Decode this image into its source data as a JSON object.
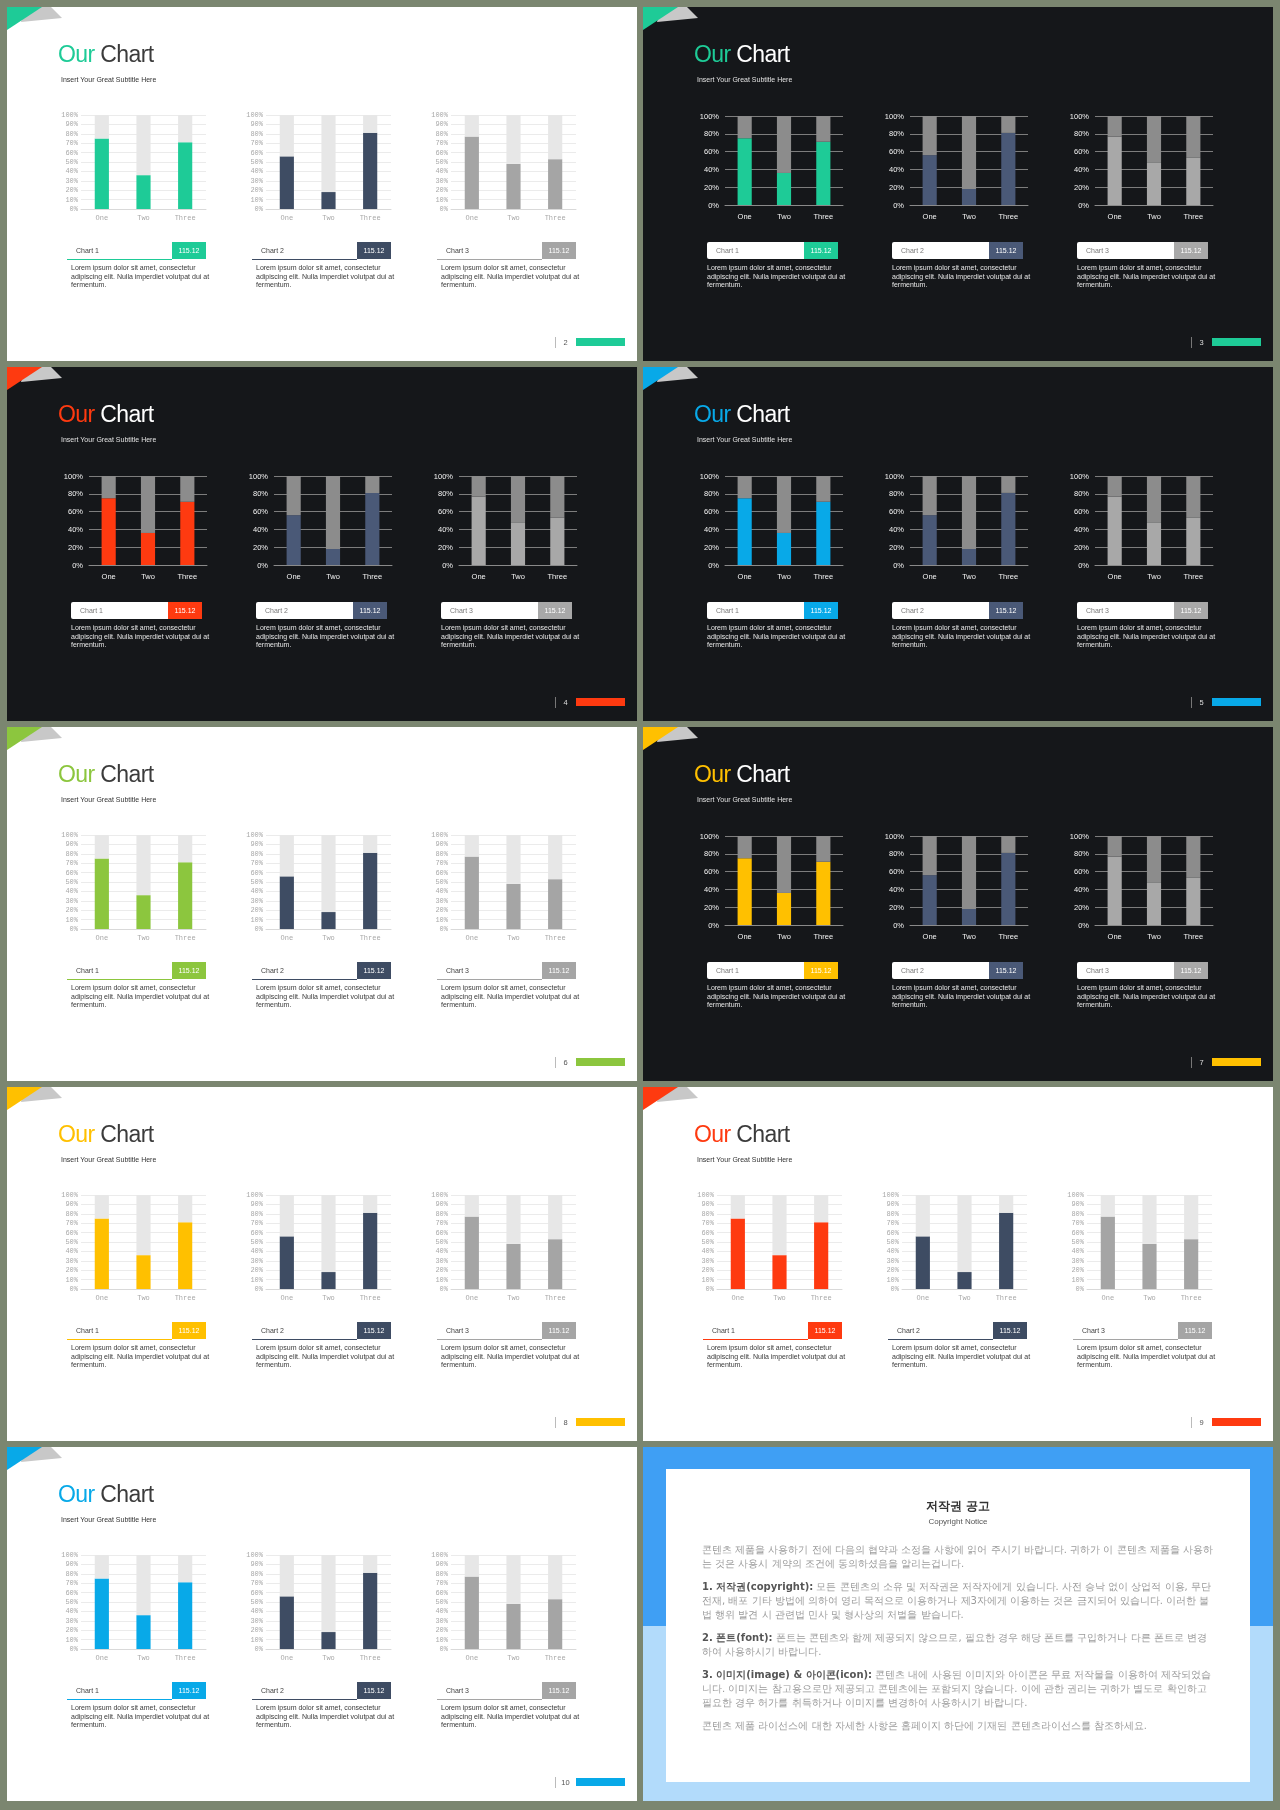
{
  "chart_data": [
    {
      "type": "bar",
      "stacked": true,
      "title": "Our Chart",
      "subtitle": "Insert Your Great Subtitle Here",
      "categories": [
        "One",
        "Two",
        "Three"
      ],
      "series": [
        {
          "color": "#1ecb97",
          "values": [
            75,
            36,
            71
          ]
        },
        {
          "color": "#e7e7e7",
          "values": [
            25,
            64,
            29
          ]
        }
      ],
      "ylim": [
        0,
        100
      ],
      "yticks": [
        {
          "value": 0,
          "label": "0%"
        },
        {
          "value": 10,
          "label": "10%"
        },
        {
          "value": 20,
          "label": "20%"
        },
        {
          "value": 30,
          "label": "30%"
        },
        {
          "value": 40,
          "label": "40%"
        },
        {
          "value": 50,
          "label": "50%"
        },
        {
          "value": 60,
          "label": "60%"
        },
        {
          "value": 70,
          "label": "70%"
        },
        {
          "value": 80,
          "label": "80%"
        },
        {
          "value": 90,
          "label": "90%"
        },
        {
          "value": 100,
          "label": "100%"
        }
      ],
      "grid": "y",
      "annotations": [
        "Chart 1",
        "115.12",
        "Lorem ipsum dolor sit amet, consectetur adipiscing elit. Nulla imperdiet volutpat dui at fermentum."
      ]
    },
    {
      "type": "bar",
      "stacked": true,
      "categories": [
        "One",
        "Two",
        "Three"
      ],
      "series": [
        {
          "color": "#3e4c63",
          "values": [
            56,
            18,
            81
          ]
        },
        {
          "color": "#e7e7e7",
          "values": [
            44,
            82,
            19
          ]
        }
      ],
      "ylim": [
        0,
        100
      ],
      "yticks": [
        {
          "value": 0,
          "label": "0%"
        },
        {
          "value": 10,
          "label": "10%"
        },
        {
          "value": 20,
          "label": "20%"
        },
        {
          "value": 30,
          "label": "30%"
        },
        {
          "value": 40,
          "label": "40%"
        },
        {
          "value": 50,
          "label": "50%"
        },
        {
          "value": 60,
          "label": "60%"
        },
        {
          "value": 70,
          "label": "70%"
        },
        {
          "value": 80,
          "label": "80%"
        },
        {
          "value": 90,
          "label": "90%"
        },
        {
          "value": 100,
          "label": "100%"
        }
      ],
      "grid": "y",
      "annotations": [
        "Chart 2",
        "115.12",
        "Lorem ipsum dolor sit amet, consectetur adipiscing elit. Nulla imperdiet volutpat dui at fermentum."
      ]
    },
    {
      "type": "bar",
      "stacked": true,
      "categories": [
        "One",
        "Two",
        "Three"
      ],
      "series": [
        {
          "color": "#a5a5a5",
          "values": [
            77,
            48,
            53
          ]
        },
        {
          "color": "#e7e7e7",
          "values": [
            23,
            52,
            47
          ]
        }
      ],
      "ylim": [
        0,
        100
      ],
      "yticks": [
        {
          "value": 0,
          "label": "0%"
        },
        {
          "value": 10,
          "label": "10%"
        },
        {
          "value": 20,
          "label": "20%"
        },
        {
          "value": 30,
          "label": "30%"
        },
        {
          "value": 40,
          "label": "40%"
        },
        {
          "value": 50,
          "label": "50%"
        },
        {
          "value": 60,
          "label": "60%"
        },
        {
          "value": 70,
          "label": "70%"
        },
        {
          "value": 80,
          "label": "80%"
        },
        {
          "value": 90,
          "label": "90%"
        },
        {
          "value": 100,
          "label": "100%"
        }
      ],
      "grid": "y",
      "annotations": [
        "Chart 3",
        "115.12",
        "Lorem ipsum dolor sit amet, consectetur adipiscing elit. Nulla imperdiet volutpat dui at fermentum.",
        "2"
      ]
    },
    {
      "type": "bar",
      "stacked": true,
      "title": "Our Chart",
      "subtitle": "Insert Your Great Subtitle Here",
      "categories": [
        "One",
        "Two",
        "Three"
      ],
      "series": [
        {
          "color": "#1ecb97",
          "values": [
            75,
            36,
            71
          ]
        },
        {
          "color": "#8c8c8c",
          "values": [
            25,
            64,
            29
          ]
        }
      ],
      "ylim": [
        0,
        100
      ],
      "yticks": [
        {
          "value": 0,
          "label": "0%"
        },
        {
          "value": 20,
          "label": "20%"
        },
        {
          "value": 40,
          "label": "40%"
        },
        {
          "value": 60,
          "label": "60%"
        },
        {
          "value": 80,
          "label": "80%"
        },
        {
          "value": 100,
          "label": "100%"
        }
      ],
      "grid": "y",
      "annotations": [
        "Chart 1",
        "115.12",
        "Lorem ipsum dolor sit amet, consectetur adipiscing elit. Nulla imperdiet volutpat dui at fermentum."
      ]
    },
    {
      "type": "bar",
      "stacked": true,
      "categories": [
        "One",
        "Two",
        "Three"
      ],
      "series": [
        {
          "color": "#4a5977",
          "values": [
            56,
            18,
            81
          ]
        },
        {
          "color": "#8c8c8c",
          "values": [
            44,
            82,
            19
          ]
        }
      ],
      "ylim": [
        0,
        100
      ],
      "yticks": [
        {
          "value": 0,
          "label": "0%"
        },
        {
          "value": 20,
          "label": "20%"
        },
        {
          "value": 40,
          "label": "40%"
        },
        {
          "value": 60,
          "label": "60%"
        },
        {
          "value": 80,
          "label": "80%"
        },
        {
          "value": 100,
          "label": "100%"
        }
      ],
      "grid": "y",
      "annotations": [
        "Chart 2",
        "115.12",
        "Lorem ipsum dolor sit amet, consectetur adipiscing elit. Nulla imperdiet volutpat dui at fermentum."
      ]
    },
    {
      "type": "bar",
      "stacked": true,
      "categories": [
        "One",
        "Two",
        "Three"
      ],
      "series": [
        {
          "color": "#a8a8a8",
          "values": [
            77,
            48,
            53
          ]
        },
        {
          "color": "#8c8c8c",
          "values": [
            23,
            52,
            47
          ]
        }
      ],
      "ylim": [
        0,
        100
      ],
      "yticks": [
        {
          "value": 0,
          "label": "0%"
        },
        {
          "value": 20,
          "label": "20%"
        },
        {
          "value": 40,
          "label": "40%"
        },
        {
          "value": 60,
          "label": "60%"
        },
        {
          "value": 80,
          "label": "80%"
        },
        {
          "value": 100,
          "label": "100%"
        }
      ],
      "grid": "y",
      "annotations": [
        "Chart 3",
        "115.12",
        "Lorem ipsum dolor sit amet, consectetur adipiscing elit. Nulla imperdiet volutpat dui at fermentum.",
        "3"
      ]
    },
    {
      "type": "bar",
      "stacked": true,
      "title": "Our Chart",
      "subtitle": "Insert Your Great Subtitle Here",
      "categories": [
        "One",
        "Two",
        "Three"
      ],
      "series": [
        {
          "color": "#fe3a10",
          "values": [
            75,
            36,
            71
          ]
        },
        {
          "color": "#8c8c8c",
          "values": [
            25,
            64,
            29
          ]
        }
      ],
      "ylim": [
        0,
        100
      ],
      "yticks": [
        {
          "value": 0,
          "label": "0%"
        },
        {
          "value": 20,
          "label": "20%"
        },
        {
          "value": 40,
          "label": "40%"
        },
        {
          "value": 60,
          "label": "60%"
        },
        {
          "value": 80,
          "label": "80%"
        },
        {
          "value": 100,
          "label": "100%"
        }
      ],
      "grid": "y",
      "annotations": [
        "Chart 1",
        "115.12",
        "Lorem ipsum dolor sit amet, consectetur adipiscing elit. Nulla imperdiet volutpat dui at fermentum."
      ]
    },
    {
      "type": "bar",
      "stacked": true,
      "categories": [
        "One",
        "Two",
        "Three"
      ],
      "series": [
        {
          "color": "#4a5977",
          "values": [
            56,
            18,
            81
          ]
        },
        {
          "color": "#8c8c8c",
          "values": [
            44,
            82,
            19
          ]
        }
      ],
      "ylim": [
        0,
        100
      ],
      "yticks": [
        {
          "value": 0,
          "label": "0%"
        },
        {
          "value": 20,
          "label": "20%"
        },
        {
          "value": 40,
          "label": "40%"
        },
        {
          "value": 60,
          "label": "60%"
        },
        {
          "value": 80,
          "label": "80%"
        },
        {
          "value": 100,
          "label": "100%"
        }
      ],
      "grid": "y",
      "annotations": [
        "Chart 2",
        "115.12",
        "Lorem ipsum dolor sit amet, consectetur adipiscing elit. Nulla imperdiet volutpat dui at fermentum."
      ]
    },
    {
      "type": "bar",
      "stacked": true,
      "categories": [
        "One",
        "Two",
        "Three"
      ],
      "series": [
        {
          "color": "#a8a8a8",
          "values": [
            77,
            48,
            53
          ]
        },
        {
          "color": "#8c8c8c",
          "values": [
            23,
            52,
            47
          ]
        }
      ],
      "ylim": [
        0,
        100
      ],
      "yticks": [
        {
          "value": 0,
          "label": "0%"
        },
        {
          "value": 20,
          "label": "20%"
        },
        {
          "value": 40,
          "label": "40%"
        },
        {
          "value": 60,
          "label": "60%"
        },
        {
          "value": 80,
          "label": "80%"
        },
        {
          "value": 100,
          "label": "100%"
        }
      ],
      "grid": "y",
      "annotations": [
        "Chart 3",
        "115.12",
        "Lorem ipsum dolor sit amet, consectetur adipiscing elit. Nulla imperdiet volutpat dui at fermentum.",
        "4"
      ]
    },
    {
      "type": "bar",
      "stacked": true,
      "title": "Our Chart",
      "subtitle": "Insert Your Great Subtitle Here",
      "categories": [
        "One",
        "Two",
        "Three"
      ],
      "series": [
        {
          "color": "#08a9e8",
          "values": [
            75,
            36,
            71
          ]
        },
        {
          "color": "#8c8c8c",
          "values": [
            25,
            64,
            29
          ]
        }
      ],
      "ylim": [
        0,
        100
      ],
      "yticks": [
        {
          "value": 0,
          "label": "0%"
        },
        {
          "value": 20,
          "label": "20%"
        },
        {
          "value": 40,
          "label": "40%"
        },
        {
          "value": 60,
          "label": "60%"
        },
        {
          "value": 80,
          "label": "80%"
        },
        {
          "value": 100,
          "label": "100%"
        }
      ],
      "grid": "y",
      "annotations": [
        "Chart 1",
        "115.12",
        "Lorem ipsum dolor sit amet, consectetur adipiscing elit. Nulla imperdiet volutpat dui at fermentum."
      ]
    },
    {
      "type": "bar",
      "stacked": true,
      "categories": [
        "One",
        "Two",
        "Three"
      ],
      "series": [
        {
          "color": "#4a5977",
          "values": [
            56,
            18,
            81
          ]
        },
        {
          "color": "#8c8c8c",
          "values": [
            44,
            82,
            19
          ]
        }
      ],
      "ylim": [
        0,
        100
      ],
      "yticks": [
        {
          "value": 0,
          "label": "0%"
        },
        {
          "value": 20,
          "label": "20%"
        },
        {
          "value": 40,
          "label": "40%"
        },
        {
          "value": 60,
          "label": "60%"
        },
        {
          "value": 80,
          "label": "80%"
        },
        {
          "value": 100,
          "label": "100%"
        }
      ],
      "grid": "y",
      "annotations": [
        "Chart 2",
        "115.12",
        "Lorem ipsum dolor sit amet, consectetur adipiscing elit. Nulla imperdiet volutpat dui at fermentum."
      ]
    },
    {
      "type": "bar",
      "stacked": true,
      "categories": [
        "One",
        "Two",
        "Three"
      ],
      "series": [
        {
          "color": "#a8a8a8",
          "values": [
            77,
            48,
            53
          ]
        },
        {
          "color": "#8c8c8c",
          "values": [
            23,
            52,
            47
          ]
        }
      ],
      "ylim": [
        0,
        100
      ],
      "yticks": [
        {
          "value": 0,
          "label": "0%"
        },
        {
          "value": 20,
          "label": "20%"
        },
        {
          "value": 40,
          "label": "40%"
        },
        {
          "value": 60,
          "label": "60%"
        },
        {
          "value": 80,
          "label": "80%"
        },
        {
          "value": 100,
          "label": "100%"
        }
      ],
      "grid": "y",
      "annotations": [
        "Chart 3",
        "115.12",
        "Lorem ipsum dolor sit amet, consectetur adipiscing elit. Nulla imperdiet volutpat dui at fermentum.",
        "5"
      ]
    },
    {
      "type": "bar",
      "stacked": true,
      "title": "Our Chart",
      "subtitle": "Insert Your Great Subtitle Here",
      "categories": [
        "One",
        "Two",
        "Three"
      ],
      "series": [
        {
          "color": "#8cc63e",
          "values": [
            75,
            36,
            71
          ]
        },
        {
          "color": "#e7e7e7",
          "values": [
            25,
            64,
            29
          ]
        }
      ],
      "ylim": [
        0,
        100
      ],
      "yticks": [
        {
          "value": 0,
          "label": "0%"
        },
        {
          "value": 10,
          "label": "10%"
        },
        {
          "value": 20,
          "label": "20%"
        },
        {
          "value": 30,
          "label": "30%"
        },
        {
          "value": 40,
          "label": "40%"
        },
        {
          "value": 50,
          "label": "50%"
        },
        {
          "value": 60,
          "label": "60%"
        },
        {
          "value": 70,
          "label": "70%"
        },
        {
          "value": 80,
          "label": "80%"
        },
        {
          "value": 90,
          "label": "90%"
        },
        {
          "value": 100,
          "label": "100%"
        }
      ],
      "grid": "y",
      "annotations": [
        "Chart 1",
        "115.12",
        "Lorem ipsum dolor sit amet, consectetur adipiscing elit. Nulla imperdiet volutpat dui at fermentum."
      ]
    },
    {
      "type": "bar",
      "stacked": true,
      "categories": [
        "One",
        "Two",
        "Three"
      ],
      "series": [
        {
          "color": "#3e4c63",
          "values": [
            56,
            18,
            81
          ]
        },
        {
          "color": "#e7e7e7",
          "values": [
            44,
            82,
            19
          ]
        }
      ],
      "ylim": [
        0,
        100
      ],
      "yticks": [
        {
          "value": 0,
          "label": "0%"
        },
        {
          "value": 10,
          "label": "10%"
        },
        {
          "value": 20,
          "label": "20%"
        },
        {
          "value": 30,
          "label": "30%"
        },
        {
          "value": 40,
          "label": "40%"
        },
        {
          "value": 50,
          "label": "50%"
        },
        {
          "value": 60,
          "label": "60%"
        },
        {
          "value": 70,
          "label": "70%"
        },
        {
          "value": 80,
          "label": "80%"
        },
        {
          "value": 90,
          "label": "90%"
        },
        {
          "value": 100,
          "label": "100%"
        }
      ],
      "grid": "y",
      "annotations": [
        "Chart 2",
        "115.12",
        "Lorem ipsum dolor sit amet, consectetur adipiscing elit. Nulla imperdiet volutpat dui at fermentum."
      ]
    },
    {
      "type": "bar",
      "stacked": true,
      "categories": [
        "One",
        "Two",
        "Three"
      ],
      "series": [
        {
          "color": "#a5a5a5",
          "values": [
            77,
            48,
            53
          ]
        },
        {
          "color": "#e7e7e7",
          "values": [
            23,
            52,
            47
          ]
        }
      ],
      "ylim": [
        0,
        100
      ],
      "yticks": [
        {
          "value": 0,
          "label": "0%"
        },
        {
          "value": 10,
          "label": "10%"
        },
        {
          "value": 20,
          "label": "20%"
        },
        {
          "value": 30,
          "label": "30%"
        },
        {
          "value": 40,
          "label": "40%"
        },
        {
          "value": 50,
          "label": "50%"
        },
        {
          "value": 60,
          "label": "60%"
        },
        {
          "value": 70,
          "label": "70%"
        },
        {
          "value": 80,
          "label": "80%"
        },
        {
          "value": 90,
          "label": "90%"
        },
        {
          "value": 100,
          "label": "100%"
        }
      ],
      "grid": "y",
      "annotations": [
        "Chart 3",
        "115.12",
        "Lorem ipsum dolor sit amet, consectetur adipiscing elit. Nulla imperdiet volutpat dui at fermentum.",
        "6"
      ]
    },
    {
      "type": "bar",
      "stacked": true,
      "title": "Our Chart",
      "subtitle": "Insert Your Great Subtitle Here",
      "categories": [
        "One",
        "Two",
        "Three"
      ],
      "series": [
        {
          "color": "#ffc000",
          "values": [
            75,
            36,
            71
          ]
        },
        {
          "color": "#8c8c8c",
          "values": [
            25,
            64,
            29
          ]
        }
      ],
      "ylim": [
        0,
        100
      ],
      "yticks": [
        {
          "value": 0,
          "label": "0%"
        },
        {
          "value": 20,
          "label": "20%"
        },
        {
          "value": 40,
          "label": "40%"
        },
        {
          "value": 60,
          "label": "60%"
        },
        {
          "value": 80,
          "label": "80%"
        },
        {
          "value": 100,
          "label": "100%"
        }
      ],
      "grid": "y",
      "annotations": [
        "Chart 1",
        "115.12",
        "Lorem ipsum dolor sit amet, consectetur adipiscing elit. Nulla imperdiet volutpat dui at fermentum."
      ]
    },
    {
      "type": "bar",
      "stacked": true,
      "categories": [
        "One",
        "Two",
        "Three"
      ],
      "series": [
        {
          "color": "#4a5977",
          "values": [
            56,
            18,
            81
          ]
        },
        {
          "color": "#8c8c8c",
          "values": [
            44,
            82,
            19
          ]
        }
      ],
      "ylim": [
        0,
        100
      ],
      "yticks": [
        {
          "value": 0,
          "label": "0%"
        },
        {
          "value": 20,
          "label": "20%"
        },
        {
          "value": 40,
          "label": "40%"
        },
        {
          "value": 60,
          "label": "60%"
        },
        {
          "value": 80,
          "label": "80%"
        },
        {
          "value": 100,
          "label": "100%"
        }
      ],
      "grid": "y",
      "annotations": [
        "Chart 2",
        "115.12",
        "Lorem ipsum dolor sit amet, consectetur adipiscing elit. Nulla imperdiet volutpat dui at fermentum."
      ]
    },
    {
      "type": "bar",
      "stacked": true,
      "categories": [
        "One",
        "Two",
        "Three"
      ],
      "series": [
        {
          "color": "#a8a8a8",
          "values": [
            77,
            48,
            53
          ]
        },
        {
          "color": "#8c8c8c",
          "values": [
            23,
            52,
            47
          ]
        }
      ],
      "ylim": [
        0,
        100
      ],
      "yticks": [
        {
          "value": 0,
          "label": "0%"
        },
        {
          "value": 20,
          "label": "20%"
        },
        {
          "value": 40,
          "label": "40%"
        },
        {
          "value": 60,
          "label": "60%"
        },
        {
          "value": 80,
          "label": "80%"
        },
        {
          "value": 100,
          "label": "100%"
        }
      ],
      "grid": "y",
      "annotations": [
        "Chart 3",
        "115.12",
        "Lorem ipsum dolor sit amet, consectetur adipiscing elit. Nulla imperdiet volutpat dui at fermentum.",
        "7"
      ]
    },
    {
      "type": "bar",
      "stacked": true,
      "title": "Our Chart",
      "subtitle": "Insert Your Great Subtitle Here",
      "categories": [
        "One",
        "Two",
        "Three"
      ],
      "series": [
        {
          "color": "#ffc000",
          "values": [
            75,
            36,
            71
          ]
        },
        {
          "color": "#e7e7e7",
          "values": [
            25,
            64,
            29
          ]
        }
      ],
      "ylim": [
        0,
        100
      ],
      "yticks": [
        {
          "value": 0,
          "label": "0%"
        },
        {
          "value": 10,
          "label": "10%"
        },
        {
          "value": 20,
          "label": "20%"
        },
        {
          "value": 30,
          "label": "30%"
        },
        {
          "value": 40,
          "label": "40%"
        },
        {
          "value": 50,
          "label": "50%"
        },
        {
          "value": 60,
          "label": "60%"
        },
        {
          "value": 70,
          "label": "70%"
        },
        {
          "value": 80,
          "label": "80%"
        },
        {
          "value": 90,
          "label": "90%"
        },
        {
          "value": 100,
          "label": "100%"
        }
      ],
      "grid": "y",
      "annotations": [
        "Chart 1",
        "115.12",
        "Lorem ipsum dolor sit amet, consectetur adipiscing elit. Nulla imperdiet volutpat dui at fermentum."
      ]
    },
    {
      "type": "bar",
      "stacked": true,
      "categories": [
        "One",
        "Two",
        "Three"
      ],
      "series": [
        {
          "color": "#3e4c63",
          "values": [
            56,
            18,
            81
          ]
        },
        {
          "color": "#e7e7e7",
          "values": [
            44,
            82,
            19
          ]
        }
      ],
      "ylim": [
        0,
        100
      ],
      "yticks": [
        {
          "value": 0,
          "label": "0%"
        },
        {
          "value": 10,
          "label": "10%"
        },
        {
          "value": 20,
          "label": "20%"
        },
        {
          "value": 30,
          "label": "30%"
        },
        {
          "value": 40,
          "label": "40%"
        },
        {
          "value": 50,
          "label": "50%"
        },
        {
          "value": 60,
          "label": "60%"
        },
        {
          "value": 70,
          "label": "70%"
        },
        {
          "value": 80,
          "label": "80%"
        },
        {
          "value": 90,
          "label": "90%"
        },
        {
          "value": 100,
          "label": "100%"
        }
      ],
      "grid": "y",
      "annotations": [
        "Chart 2",
        "115.12",
        "Lorem ipsum dolor sit amet, consectetur adipiscing elit. Nulla imperdiet volutpat dui at fermentum."
      ]
    },
    {
      "type": "bar",
      "stacked": true,
      "categories": [
        "One",
        "Two",
        "Three"
      ],
      "series": [
        {
          "color": "#a5a5a5",
          "values": [
            77,
            48,
            53
          ]
        },
        {
          "color": "#e7e7e7",
          "values": [
            23,
            52,
            47
          ]
        }
      ],
      "ylim": [
        0,
        100
      ],
      "yticks": [
        {
          "value": 0,
          "label": "0%"
        },
        {
          "value": 10,
          "label": "10%"
        },
        {
          "value": 20,
          "label": "20%"
        },
        {
          "value": 30,
          "label": "30%"
        },
        {
          "value": 40,
          "label": "40%"
        },
        {
          "value": 50,
          "label": "50%"
        },
        {
          "value": 60,
          "label": "60%"
        },
        {
          "value": 70,
          "label": "70%"
        },
        {
          "value": 80,
          "label": "80%"
        },
        {
          "value": 90,
          "label": "90%"
        },
        {
          "value": 100,
          "label": "100%"
        }
      ],
      "grid": "y",
      "annotations": [
        "Chart 3",
        "115.12",
        "Lorem ipsum dolor sit amet, consectetur adipiscing elit. Nulla imperdiet volutpat dui at fermentum.",
        "8"
      ]
    },
    {
      "type": "bar",
      "stacked": true,
      "title": "Our Chart",
      "subtitle": "Insert Your Great Subtitle Here",
      "categories": [
        "One",
        "Two",
        "Three"
      ],
      "series": [
        {
          "color": "#fe3a10",
          "values": [
            75,
            36,
            71
          ]
        },
        {
          "color": "#e7e7e7",
          "values": [
            25,
            64,
            29
          ]
        }
      ],
      "ylim": [
        0,
        100
      ],
      "yticks": [
        {
          "value": 0,
          "label": "0%"
        },
        {
          "value": 10,
          "label": "10%"
        },
        {
          "value": 20,
          "label": "20%"
        },
        {
          "value": 30,
          "label": "30%"
        },
        {
          "value": 40,
          "label": "40%"
        },
        {
          "value": 50,
          "label": "50%"
        },
        {
          "value": 60,
          "label": "60%"
        },
        {
          "value": 70,
          "label": "70%"
        },
        {
          "value": 80,
          "label": "80%"
        },
        {
          "value": 90,
          "label": "90%"
        },
        {
          "value": 100,
          "label": "100%"
        }
      ],
      "grid": "y",
      "annotations": [
        "Chart 1",
        "115.12",
        "Lorem ipsum dolor sit amet, consectetur adipiscing elit. Nulla imperdiet volutpat dui at fermentum."
      ]
    },
    {
      "type": "bar",
      "stacked": true,
      "categories": [
        "One",
        "Two",
        "Three"
      ],
      "series": [
        {
          "color": "#3e4c63",
          "values": [
            56,
            18,
            81
          ]
        },
        {
          "color": "#e7e7e7",
          "values": [
            44,
            82,
            19
          ]
        }
      ],
      "ylim": [
        0,
        100
      ],
      "yticks": [
        {
          "value": 0,
          "label": "0%"
        },
        {
          "value": 10,
          "label": "10%"
        },
        {
          "value": 20,
          "label": "20%"
        },
        {
          "value": 30,
          "label": "30%"
        },
        {
          "value": 40,
          "label": "40%"
        },
        {
          "value": 50,
          "label": "50%"
        },
        {
          "value": 60,
          "label": "60%"
        },
        {
          "value": 70,
          "label": "70%"
        },
        {
          "value": 80,
          "label": "80%"
        },
        {
          "value": 90,
          "label": "90%"
        },
        {
          "value": 100,
          "label": "100%"
        }
      ],
      "grid": "y",
      "annotations": [
        "Chart 2",
        "115.12",
        "Lorem ipsum dolor sit amet, consectetur adipiscing elit. Nulla imperdiet volutpat dui at fermentum."
      ]
    },
    {
      "type": "bar",
      "stacked": true,
      "categories": [
        "One",
        "Two",
        "Three"
      ],
      "series": [
        {
          "color": "#a5a5a5",
          "values": [
            77,
            48,
            53
          ]
        },
        {
          "color": "#e7e7e7",
          "values": [
            23,
            52,
            47
          ]
        }
      ],
      "ylim": [
        0,
        100
      ],
      "yticks": [
        {
          "value": 0,
          "label": "0%"
        },
        {
          "value": 10,
          "label": "10%"
        },
        {
          "value": 20,
          "label": "20%"
        },
        {
          "value": 30,
          "label": "30%"
        },
        {
          "value": 40,
          "label": "40%"
        },
        {
          "value": 50,
          "label": "50%"
        },
        {
          "value": 60,
          "label": "60%"
        },
        {
          "value": 70,
          "label": "70%"
        },
        {
          "value": 80,
          "label": "80%"
        },
        {
          "value": 90,
          "label": "90%"
        },
        {
          "value": 100,
          "label": "100%"
        }
      ],
      "grid": "y",
      "annotations": [
        "Chart 3",
        "115.12",
        "Lorem ipsum dolor sit amet, consectetur adipiscing elit. Nulla imperdiet volutpat dui at fermentum.",
        "9"
      ]
    },
    {
      "type": "bar",
      "stacked": true,
      "title": "Our Chart",
      "subtitle": "Insert Your Great Subtitle Here",
      "categories": [
        "One",
        "Two",
        "Three"
      ],
      "series": [
        {
          "color": "#08a9e8",
          "values": [
            75,
            36,
            71
          ]
        },
        {
          "color": "#e7e7e7",
          "values": [
            25,
            64,
            29
          ]
        }
      ],
      "ylim": [
        0,
        100
      ],
      "yticks": [
        {
          "value": 0,
          "label": "0%"
        },
        {
          "value": 10,
          "label": "10%"
        },
        {
          "value": 20,
          "label": "20%"
        },
        {
          "value": 30,
          "label": "30%"
        },
        {
          "value": 40,
          "label": "40%"
        },
        {
          "value": 50,
          "label": "50%"
        },
        {
          "value": 60,
          "label": "60%"
        },
        {
          "value": 70,
          "label": "70%"
        },
        {
          "value": 80,
          "label": "80%"
        },
        {
          "value": 90,
          "label": "90%"
        },
        {
          "value": 100,
          "label": "100%"
        }
      ],
      "grid": "y",
      "annotations": [
        "Chart 1",
        "115.12",
        "Lorem ipsum dolor sit amet, consectetur adipiscing elit. Nulla imperdiet volutpat dui at fermentum."
      ]
    },
    {
      "type": "bar",
      "stacked": true,
      "categories": [
        "One",
        "Two",
        "Three"
      ],
      "series": [
        {
          "color": "#3e4c63",
          "values": [
            56,
            18,
            81
          ]
        },
        {
          "color": "#e7e7e7",
          "values": [
            44,
            82,
            19
          ]
        }
      ],
      "ylim": [
        0,
        100
      ],
      "yticks": [
        {
          "value": 0,
          "label": "0%"
        },
        {
          "value": 10,
          "label": "10%"
        },
        {
          "value": 20,
          "label": "20%"
        },
        {
          "value": 30,
          "label": "30%"
        },
        {
          "value": 40,
          "label": "40%"
        },
        {
          "value": 50,
          "label": "50%"
        },
        {
          "value": 60,
          "label": "60%"
        },
        {
          "value": 70,
          "label": "70%"
        },
        {
          "value": 80,
          "label": "80%"
        },
        {
          "value": 90,
          "label": "90%"
        },
        {
          "value": 100,
          "label": "100%"
        }
      ],
      "grid": "y",
      "annotations": [
        "Chart 2",
        "115.12",
        "Lorem ipsum dolor sit amet, consectetur adipiscing elit. Nulla imperdiet volutpat dui at fermentum."
      ]
    },
    {
      "type": "bar",
      "stacked": true,
      "categories": [
        "One",
        "Two",
        "Three"
      ],
      "series": [
        {
          "color": "#a5a5a5",
          "values": [
            77,
            48,
            53
          ]
        },
        {
          "color": "#e7e7e7",
          "values": [
            23,
            52,
            47
          ]
        }
      ],
      "ylim": [
        0,
        100
      ],
      "yticks": [
        {
          "value": 0,
          "label": "0%"
        },
        {
          "value": 10,
          "label": "10%"
        },
        {
          "value": 20,
          "label": "20%"
        },
        {
          "value": 30,
          "label": "30%"
        },
        {
          "value": 40,
          "label": "40%"
        },
        {
          "value": 50,
          "label": "50%"
        },
        {
          "value": 60,
          "label": "60%"
        },
        {
          "value": 70,
          "label": "70%"
        },
        {
          "value": 80,
          "label": "80%"
        },
        {
          "value": 90,
          "label": "90%"
        },
        {
          "value": 100,
          "label": "100%"
        }
      ],
      "grid": "y",
      "annotations": [
        "Chart 3",
        "115.12",
        "Lorem ipsum dolor sit amet, consectetur adipiscing elit. Nulla imperdiet volutpat dui at fermentum.",
        "10"
      ]
    },
    {
      "type": "other",
      "title": "저작권 공고",
      "subtitle": "Copyright Notice",
      "annotations": [
        "콘텐츠 제품을 사용하기 전에 다음의 협약과 소정을 사항에 읽어 주시기 바랍니다. 귀하가 이 콘텐츠 제품을 사용하는 것은 사용시 계약의 조건에 동의하셨음을 알리는겁니다.",
        "1. 저작권(copyright): 모든 콘텐츠의 소유 및 저작권은 저작자에게 있습니다. 사전 승낙 없이 상업적 이용, 무단전재, 배포 기타 방법에 의하여 영리 목적으로 이용하거나 제3자에게 이용하는 것은 금지되어 있습니다. 이러한 불법 행위 발견 시 관련법 민사 및 형사상의 처벌을 받습니다.",
        "2. 폰트(font): 폰트는 콘텐츠와 함께 제공되지 않으므로, 필요한 경우 해당 폰트를 구입하거나 다른 폰트로 변경하여 사용하시기 바랍니다.",
        "3. 이미지(image) & 아이콘(icon): 콘텐츠 내에 사용된 이미지와 아이콘은 무료 저작물을 이용하여 제작되었습니다. 이미지는 참고용으로만 제공되고 콘텐츠에는 포함되지 않습니다. 이에 관한 권리는 귀하가 별도로 확인하고 필요한 경우 허가를 취득하거나 이미지를 변경하여 사용하시기 바랍니다.",
        "콘텐츠 제품 라이선스에 대한 자세한 사항은 홈페이지 하단에 기재된 콘텐츠라이선스를 참조하세요."
      ]
    }
  ]
}
